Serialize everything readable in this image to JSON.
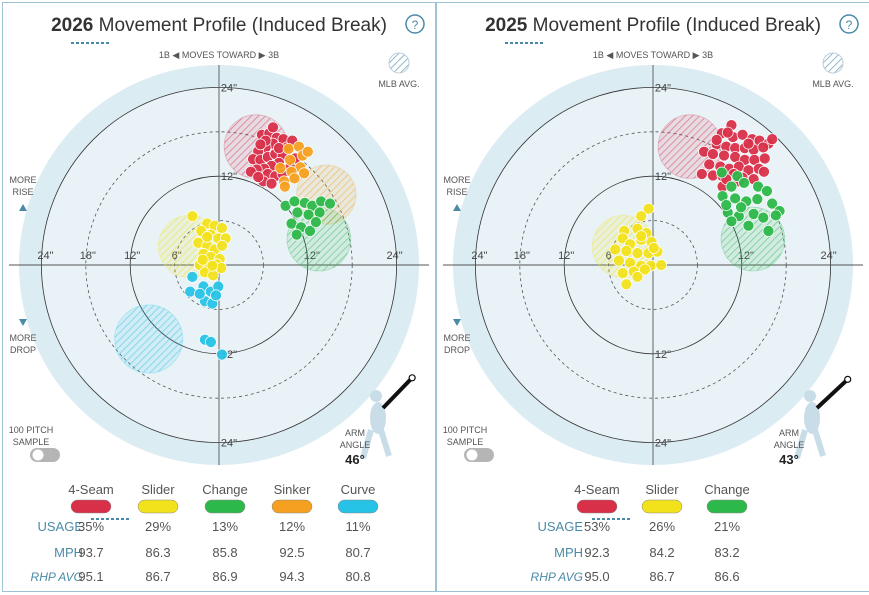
{
  "colors": {
    "4-Seam": "#d9304a",
    "Slider": "#f2e21c",
    "Change": "#2db84a",
    "Sinker": "#f5a020",
    "Curve": "#27c3e6"
  },
  "panels": [
    {
      "title_year": "2026",
      "title_rest": "Movement Profile (Induced Break)",
      "help_icon": "?",
      "moves_toward": "1B ◀  MOVES TOWARD  ▶ 3B",
      "mlb_avg": "MLB AVG.",
      "more_rise": [
        "MORE",
        "RISE"
      ],
      "more_drop": [
        "MORE",
        "DROP"
      ],
      "sample_label": [
        "100 PITCH",
        "SAMPLE"
      ],
      "arm_angle_label": [
        "ARM",
        "ANGLE"
      ],
      "arm_angle_value": "46°",
      "ring_labels": {
        "top24": "24\"",
        "top12": "12\"",
        "bot12": "12\"",
        "bot24": "24\"",
        "l24": "24\"",
        "l18": "18\"",
        "l12": "12\"",
        "l6": "6\"",
        "r12": "12\"",
        "r24": "24\""
      },
      "table": {
        "row_labels": [
          "USAGE",
          "MPH",
          "RHP AVG"
        ],
        "pitches": [
          {
            "name": "4-Seam",
            "usage": "35%",
            "mph": "93.7",
            "rhp_avg": "95.1"
          },
          {
            "name": "Slider",
            "usage": "29%",
            "mph": "86.3",
            "rhp_avg": "86.7"
          },
          {
            "name": "Change",
            "usage": "13%",
            "mph": "85.8",
            "rhp_avg": "86.9"
          },
          {
            "name": "Sinker",
            "usage": "12%",
            "mph": "92.5",
            "rhp_avg": "94.3"
          },
          {
            "name": "Curve",
            "usage": "11%",
            "mph": "80.7",
            "rhp_avg": "80.8"
          }
        ]
      }
    },
    {
      "title_year": "2025",
      "title_rest": "Movement Profile (Induced Break)",
      "help_icon": "?",
      "moves_toward": "1B ◀  MOVES TOWARD  ▶ 3B",
      "mlb_avg": "MLB AVG.",
      "more_rise": [
        "MORE",
        "RISE"
      ],
      "more_drop": [
        "MORE",
        "DROP"
      ],
      "sample_label": [
        "100 PITCH",
        "SAMPLE"
      ],
      "arm_angle_label": [
        "ARM",
        "ANGLE"
      ],
      "arm_angle_value": "43°",
      "ring_labels": {
        "top24": "24\"",
        "top12": "12\"",
        "bot12": "12\"",
        "bot24": "24\"",
        "l24": "24\"",
        "l18": "18\"",
        "l12": "12\"",
        "l6": "6\"",
        "r12": "12\"",
        "r24": "24\""
      },
      "table": {
        "row_labels": [
          "USAGE",
          "MPH",
          "RHP AVG"
        ],
        "pitches": [
          {
            "name": "4-Seam",
            "usage": "53%",
            "mph": "92.3",
            "rhp_avg": "95.0"
          },
          {
            "name": "Slider",
            "usage": "26%",
            "mph": "84.2",
            "rhp_avg": "86.7"
          },
          {
            "name": "Change",
            "usage": "21%",
            "mph": "83.2",
            "rhp_avg": "86.6"
          }
        ]
      }
    }
  ],
  "chart_data": [
    {
      "type": "scatter",
      "title": "2026 Movement Profile (Induced Break)",
      "xlabel": "1B ◀ MOVES TOWARD ▶ 3B",
      "ylabel": "",
      "xlim": [
        -27,
        27
      ],
      "ylim": [
        -27,
        27
      ],
      "grid": true,
      "mlb_avg_regions": [
        {
          "pitch": "4-Seam",
          "cx": 5,
          "cy": 16,
          "r": 4.3
        },
        {
          "pitch": "Sinker",
          "cx": 14.5,
          "cy": 9.5,
          "r": 4
        },
        {
          "pitch": "Change",
          "cx": 13.5,
          "cy": 3.5,
          "r": 4.3
        },
        {
          "pitch": "Slider",
          "cx": -4,
          "cy": 2.5,
          "r": 4.2
        },
        {
          "pitch": "Curve",
          "cx": -9.5,
          "cy": -10,
          "r": 4.6
        }
      ],
      "series": [
        {
          "name": "4-Seam",
          "points": [
            [
              5.8,
              17.6
            ],
            [
              6.8,
              17.8
            ],
            [
              7.8,
              17.2
            ],
            [
              8.7,
              17.0
            ],
            [
              9.2,
              15.9
            ],
            [
              7.3,
              16.4
            ],
            [
              6.3,
              15.9
            ],
            [
              5.3,
              15.4
            ],
            [
              4.6,
              14.3
            ],
            [
              5.6,
              14.2
            ],
            [
              6.6,
              14.6
            ],
            [
              7.6,
              15.0
            ],
            [
              8.6,
              14.8
            ],
            [
              8.1,
              13.8
            ],
            [
              7.1,
              13.4
            ],
            [
              6.1,
              13.0
            ],
            [
              5.1,
              12.9
            ],
            [
              4.3,
              12.6
            ],
            [
              6.6,
              12.3
            ],
            [
              7.6,
              12.0
            ],
            [
              8.6,
              12.3
            ],
            [
              9.6,
              13.2
            ],
            [
              10.3,
              14.4
            ],
            [
              6.0,
              11.3
            ],
            [
              5.3,
              11.9
            ],
            [
              7.1,
              11.0
            ],
            [
              8.1,
              15.8
            ],
            [
              9.9,
              16.8
            ],
            [
              7.3,
              18.6
            ],
            [
              6.3,
              16.8
            ],
            [
              5.6,
              16.3
            ]
          ]
        },
        {
          "name": "Sinker",
          "points": [
            [
              9.4,
              15.7
            ],
            [
              10.8,
              16.0
            ],
            [
              11.3,
              14.8
            ],
            [
              11.0,
              13.2
            ],
            [
              9.8,
              12.6
            ],
            [
              8.8,
              11.3
            ],
            [
              10.2,
              11.7
            ],
            [
              8.3,
              13.1
            ],
            [
              9.6,
              14.2
            ],
            [
              12.0,
              15.3
            ],
            [
              8.9,
              10.6
            ],
            [
              11.5,
              12.4
            ]
          ]
        },
        {
          "name": "Change",
          "points": [
            [
              9.0,
              8.0
            ],
            [
              10.2,
              8.6
            ],
            [
              11.6,
              8.4
            ],
            [
              12.6,
              8.0
            ],
            [
              13.8,
              8.6
            ],
            [
              15.0,
              8.3
            ],
            [
              10.6,
              7.1
            ],
            [
              12.1,
              6.8
            ],
            [
              13.6,
              7.1
            ],
            [
              9.8,
              5.6
            ],
            [
              11.1,
              5.1
            ],
            [
              12.3,
              4.6
            ],
            [
              10.5,
              4.1
            ],
            [
              13.1,
              5.8
            ]
          ]
        },
        {
          "name": "Slider",
          "points": [
            [
              -3.6,
              6.6
            ],
            [
              -1.6,
              5.6
            ],
            [
              -0.6,
              5.3
            ],
            [
              0.4,
              5.0
            ],
            [
              -2.4,
              4.6
            ],
            [
              -1.1,
              4.1
            ],
            [
              -0.1,
              3.6
            ],
            [
              0.9,
              3.6
            ],
            [
              -2.8,
              3.0
            ],
            [
              -1.6,
              2.6
            ],
            [
              -0.6,
              2.1
            ],
            [
              0.4,
              2.6
            ],
            [
              -2.1,
              1.5
            ],
            [
              -1.1,
              1.1
            ],
            [
              0.1,
              0.8
            ],
            [
              -2.6,
              0.0
            ],
            [
              -1.4,
              -0.4
            ],
            [
              -0.3,
              0.1
            ],
            [
              -1.9,
              -1.0
            ],
            [
              -0.8,
              -1.4
            ],
            [
              -2.2,
              0.7
            ],
            [
              0.3,
              -0.4
            ],
            [
              -1.6,
              3.8
            ],
            [
              -0.9,
              -0.1
            ]
          ]
        },
        {
          "name": "Curve",
          "points": [
            [
              -3.6,
              -1.6
            ],
            [
              -3.9,
              -3.6
            ],
            [
              -2.1,
              -2.9
            ],
            [
              -1.1,
              -3.6
            ],
            [
              -0.1,
              -2.9
            ],
            [
              -1.9,
              -4.9
            ],
            [
              -0.9,
              -5.2
            ],
            [
              -0.4,
              -4.1
            ],
            [
              -1.9,
              -10.1
            ],
            [
              -1.1,
              -10.4
            ],
            [
              0.4,
              -12.1
            ],
            [
              -2.6,
              -3.9
            ]
          ]
        }
      ]
    },
    {
      "type": "scatter",
      "title": "2025 Movement Profile (Induced Break)",
      "xlabel": "1B ◀ MOVES TOWARD ▶ 3B",
      "ylabel": "",
      "xlim": [
        -27,
        27
      ],
      "ylim": [
        -27,
        27
      ],
      "grid": true,
      "mlb_avg_regions": [
        {
          "pitch": "4-Seam",
          "cx": 5,
          "cy": 16,
          "r": 4.3
        },
        {
          "pitch": "Change",
          "cx": 13.5,
          "cy": 3.5,
          "r": 4.3
        },
        {
          "pitch": "Slider",
          "cx": -4,
          "cy": 2.5,
          "r": 4.2
        }
      ],
      "series": [
        {
          "name": "4-Seam",
          "points": [
            [
              10.6,
              18.9
            ],
            [
              9.3,
              17.8
            ],
            [
              10.8,
              17.3
            ],
            [
              12.1,
              17.6
            ],
            [
              13.4,
              17.0
            ],
            [
              14.4,
              16.8
            ],
            [
              15.6,
              16.4
            ],
            [
              16.1,
              17.0
            ],
            [
              8.6,
              16.3
            ],
            [
              9.9,
              16.0
            ],
            [
              11.1,
              15.8
            ],
            [
              12.4,
              15.8
            ],
            [
              13.6,
              15.6
            ],
            [
              14.9,
              15.9
            ],
            [
              6.9,
              15.3
            ],
            [
              8.1,
              15.0
            ],
            [
              9.6,
              14.8
            ],
            [
              11.1,
              14.6
            ],
            [
              12.4,
              14.2
            ],
            [
              13.7,
              14.2
            ],
            [
              15.1,
              14.4
            ],
            [
              7.6,
              13.6
            ],
            [
              9.1,
              13.3
            ],
            [
              10.3,
              13.0
            ],
            [
              11.6,
              13.3
            ],
            [
              12.9,
              12.8
            ],
            [
              14.3,
              13.0
            ],
            [
              6.6,
              12.3
            ],
            [
              8.1,
              12.1
            ],
            [
              9.4,
              12.0
            ],
            [
              10.9,
              12.3
            ],
            [
              12.1,
              11.8
            ],
            [
              13.6,
              11.6
            ],
            [
              9.4,
              10.6
            ],
            [
              8.6,
              16.9
            ],
            [
              10.1,
              17.9
            ],
            [
              12.9,
              16.4
            ],
            [
              15.0,
              12.6
            ],
            [
              11.6,
              11.3
            ],
            [
              9.9,
              11.6
            ]
          ]
        },
        {
          "name": "Change",
          "points": [
            [
              9.3,
              12.5
            ],
            [
              11.4,
              12.0
            ],
            [
              12.3,
              11.1
            ],
            [
              10.6,
              10.6
            ],
            [
              14.2,
              10.6
            ],
            [
              15.4,
              10.0
            ],
            [
              9.4,
              9.3
            ],
            [
              11.1,
              9.0
            ],
            [
              12.6,
              8.6
            ],
            [
              14.1,
              8.9
            ],
            [
              16.1,
              8.3
            ],
            [
              17.1,
              7.3
            ],
            [
              10.1,
              7.1
            ],
            [
              11.6,
              6.6
            ],
            [
              13.6,
              6.9
            ],
            [
              14.9,
              6.4
            ],
            [
              16.6,
              6.7
            ],
            [
              12.9,
              5.3
            ],
            [
              15.6,
              4.6
            ],
            [
              10.6,
              5.9
            ],
            [
              9.9,
              8.1
            ],
            [
              11.9,
              7.8
            ]
          ]
        },
        {
          "name": "Slider",
          "points": [
            [
              -0.6,
              7.6
            ],
            [
              -1.6,
              6.6
            ],
            [
              -3.9,
              4.6
            ],
            [
              -2.1,
              4.9
            ],
            [
              -0.9,
              4.3
            ],
            [
              -4.1,
              3.6
            ],
            [
              -3.1,
              2.8
            ],
            [
              -1.6,
              3.4
            ],
            [
              -0.2,
              3.1
            ],
            [
              -5.1,
              2.1
            ],
            [
              -3.6,
              1.9
            ],
            [
              -2.1,
              1.6
            ],
            [
              -0.6,
              1.6
            ],
            [
              0.6,
              1.8
            ],
            [
              -4.6,
              0.6
            ],
            [
              -3.1,
              0.3
            ],
            [
              -1.6,
              -0.1
            ],
            [
              -0.3,
              -0.1
            ],
            [
              1.1,
              0.0
            ],
            [
              -2.6,
              -0.9
            ],
            [
              -1.1,
              -0.6
            ],
            [
              -4.1,
              -1.1
            ],
            [
              -2.1,
              -1.6
            ],
            [
              -3.6,
              -2.6
            ],
            [
              -1.6,
              3.9
            ],
            [
              0.1,
              2.3
            ]
          ]
        }
      ]
    }
  ]
}
